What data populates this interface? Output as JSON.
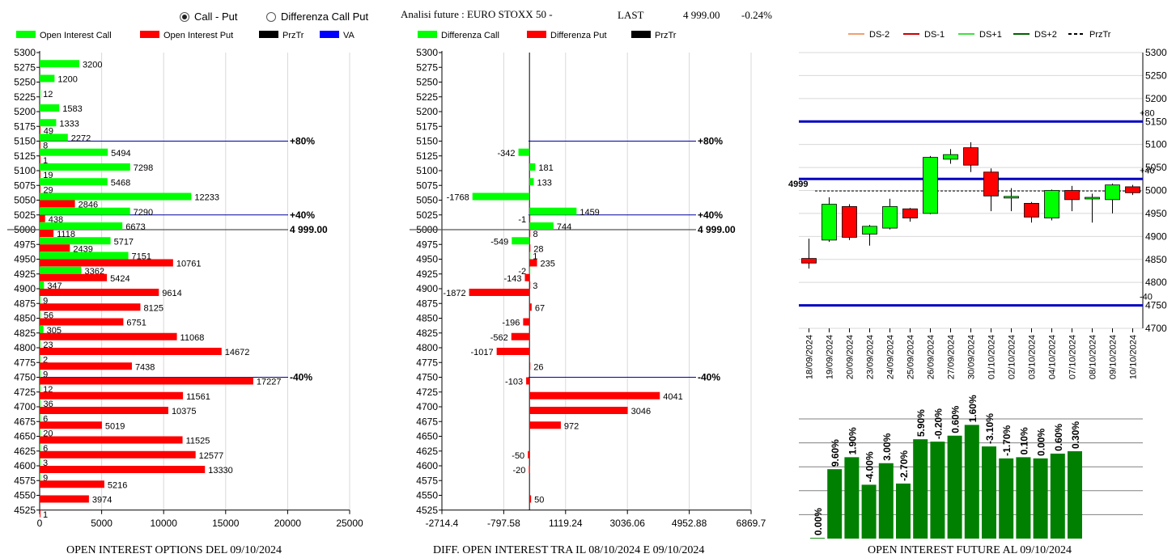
{
  "header": {
    "radio_call_put": "Call - Put",
    "radio_diff": "Differenza Call Put",
    "analysis_title": "Analisi future : EURO STOXX 50 -",
    "last_label": "LAST",
    "last_value": "4 999.00",
    "last_change": "-0.24%"
  },
  "colors": {
    "green": "#00ff00",
    "red": "#ff0000",
    "black": "#000000",
    "blue": "#0000ff",
    "dark_green": "#008000",
    "navy": "#0000c0"
  },
  "captions": {
    "left": "OPEN INTEREST OPTIONS DEL 09/10/2024",
    "middle": "DIFF. OPEN INTEREST TRA IL 08/10/2024 E 09/10/2024",
    "right": "OPEN INTEREST FUTURE AL 09/10/2024"
  },
  "chart_data": [
    {
      "type": "bar",
      "orientation": "horizontal",
      "legend": [
        "Open Interest Call",
        "Open Interest Put",
        "PrzTr",
        "VA"
      ],
      "categories": [
        "5300",
        "5275",
        "5250",
        "5225",
        "5200",
        "5175",
        "5150",
        "5125",
        "5100",
        "5075",
        "5050",
        "5025",
        "5000",
        "4975",
        "4950",
        "4925",
        "4900",
        "4875",
        "4850",
        "4825",
        "4800",
        "4775",
        "4750",
        "4725",
        "4700",
        "4675",
        "4650",
        "4625",
        "4600",
        "4575",
        "4550",
        "4525"
      ],
      "series": [
        {
          "name": "Open Interest Call",
          "color": "#00ff00",
          "values": [
            null,
            3200,
            1200,
            12,
            1583,
            1333,
            2272,
            5494,
            7298,
            5468,
            12233,
            7290,
            6673,
            5717,
            7151,
            3362,
            347,
            9,
            56,
            305,
            23,
            2,
            9,
            12,
            36,
            6,
            20,
            6,
            3,
            9,
            null,
            null
          ]
        },
        {
          "name": "Open Interest Put",
          "color": "#ff0000",
          "values": [
            null,
            null,
            null,
            null,
            null,
            49,
            8,
            1,
            19,
            29,
            2846,
            438,
            1118,
            2439,
            10761,
            5424,
            9614,
            8125,
            6751,
            11068,
            14672,
            7438,
            17227,
            11561,
            10375,
            5019,
            11525,
            12577,
            13330,
            5216,
            3974,
            1
          ]
        }
      ],
      "xlim": [
        0,
        25000
      ],
      "xticks": [
        "0",
        "5000",
        "10000",
        "15000",
        "20000",
        "25000"
      ],
      "reference_lines": [
        {
          "strike": "5150",
          "label": "+80%"
        },
        {
          "strike": "5025",
          "label": "+40%"
        },
        {
          "strike": "5000",
          "label": "4 999.00"
        },
        {
          "strike": "4750",
          "label": "-40%"
        }
      ]
    },
    {
      "type": "bar",
      "orientation": "horizontal",
      "legend": [
        "Differenza Call",
        "Differenza Put",
        "PrzTr"
      ],
      "categories": [
        "5300",
        "5275",
        "5250",
        "5225",
        "5200",
        "5175",
        "5150",
        "5125",
        "5100",
        "5075",
        "5050",
        "5025",
        "5000",
        "4975",
        "4950",
        "4925",
        "4900",
        "4875",
        "4850",
        "4825",
        "4800",
        "4775",
        "4750",
        "4725",
        "4700",
        "4675",
        "4650",
        "4625",
        "4600",
        "4575",
        "4550",
        "4525"
      ],
      "series": [
        {
          "name": "Differenza Call",
          "color": "#00ff00",
          "values": [
            null,
            null,
            null,
            null,
            null,
            null,
            null,
            -342,
            181,
            133,
            -1768,
            1459,
            744,
            -549,
            1,
            -2,
            null,
            null,
            null,
            null,
            null,
            null,
            null,
            null,
            null,
            null,
            null,
            null,
            null,
            null,
            null,
            null
          ]
        },
        {
          "name": "Differenza Put",
          "color": "#ff0000",
          "values": [
            null,
            null,
            null,
            null,
            null,
            null,
            null,
            null,
            null,
            null,
            null,
            -1,
            8,
            28,
            235,
            -143,
            -1872,
            67,
            -196,
            -562,
            -1017,
            26,
            -103,
            4041,
            3046,
            972,
            null,
            -50,
            -20,
            null,
            50,
            null
          ]
        },
        {
          "name": "Differenza Put extra",
          "color": "#ff0000",
          "values": [
            null,
            null,
            null,
            null,
            null,
            null,
            null,
            null,
            null,
            null,
            null,
            null,
            null,
            null,
            null,
            null,
            3,
            null,
            null,
            null,
            null,
            null,
            null,
            null,
            null,
            null,
            null,
            null,
            null,
            null,
            null,
            null
          ]
        }
      ],
      "xlim": [
        -2714.4,
        6869.7
      ],
      "xticks": [
        "-2714.4",
        "-797.58",
        "1119.24",
        "3036.06",
        "4952.88",
        "6869.7"
      ],
      "reference_lines": [
        {
          "strike": "5150",
          "label": "+80%"
        },
        {
          "strike": "5025",
          "label": "+40%"
        },
        {
          "strike": "5000",
          "label": "4 999.00"
        },
        {
          "strike": "4750",
          "label": "-40%"
        }
      ]
    },
    {
      "type": "candlestick",
      "legend": [
        "DS-2",
        "DS-1",
        "DS+1",
        "DS+2",
        "PrzTr"
      ],
      "legend_colors": [
        "#f0a070",
        "#cc0000",
        "#40e040",
        "#006000",
        "#000000"
      ],
      "ylim": [
        4700,
        5300
      ],
      "yticks": [
        "5300",
        "5250",
        "5200",
        "5150",
        "5100",
        "5050",
        "5000",
        "4950",
        "4900",
        "4850",
        "4800",
        "4750",
        "4700"
      ],
      "x": [
        "18/09/2024",
        "19/09/2024",
        "20/09/2024",
        "23/09/2024",
        "24/09/2024",
        "25/09/2024",
        "26/09/2024",
        "27/09/2024",
        "30/09/2024",
        "01/10/2024",
        "02/10/2024",
        "03/10/2024",
        "04/10/2024",
        "07/10/2024",
        "08/10/2024",
        "09/10/2024",
        "10/10/2024"
      ],
      "candles": [
        {
          "open": 4852,
          "close": 4842,
          "high": 4895,
          "low": 4830
        },
        {
          "open": 4892,
          "close": 4970,
          "high": 4985,
          "low": 4888
        },
        {
          "open": 4965,
          "close": 4898,
          "high": 4970,
          "low": 4892
        },
        {
          "open": 4905,
          "close": 4922,
          "high": 4925,
          "low": 4880
        },
        {
          "open": 4918,
          "close": 4965,
          "high": 4982,
          "low": 4915
        },
        {
          "open": 4960,
          "close": 4940,
          "high": 4962,
          "low": 4932
        },
        {
          "open": 4950,
          "close": 5072,
          "high": 5075,
          "low": 4948
        },
        {
          "open": 5068,
          "close": 5078,
          "high": 5090,
          "low": 5058
        },
        {
          "open": 5093,
          "close": 5055,
          "high": 5105,
          "low": 5040
        },
        {
          "open": 5040,
          "close": 4988,
          "high": 5048,
          "low": 4955
        },
        {
          "open": 4987,
          "close": 4987,
          "high": 5005,
          "low": 4955
        },
        {
          "open": 4972,
          "close": 4942,
          "high": 4975,
          "low": 4930
        },
        {
          "open": 4940,
          "close": 5000,
          "high": 5002,
          "low": 4935
        },
        {
          "open": 5000,
          "close": 4980,
          "high": 5010,
          "low": 4955
        },
        {
          "open": 4985,
          "close": 4985,
          "high": 4993,
          "low": 4930
        },
        {
          "open": 4980,
          "close": 5012,
          "high": 5015,
          "low": 4950
        },
        {
          "open": 5008,
          "close": 4995,
          "high": 5012,
          "low": 4990
        }
      ],
      "hlines": [
        {
          "value": 5150,
          "label": "+80"
        },
        {
          "value": 5025,
          "label": "+40"
        },
        {
          "value": 4750,
          "label": "-40"
        }
      ],
      "price_line": {
        "value": 4999,
        "label": "4999"
      }
    },
    {
      "type": "bar",
      "series": [
        {
          "name": "Open Interest Future",
          "color": "#008000",
          "values": [
            0.3,
            29.0,
            34.0,
            22.5,
            31.5,
            23.0,
            41.5,
            40.5,
            43.0,
            47.5,
            38.5,
            33.5,
            34.0,
            33.5,
            35.5,
            36.5
          ]
        }
      ],
      "data_labels": [
        "0.00%",
        "9.60%",
        "1.90%",
        "-4.00%",
        "3.00%",
        "-2.70%",
        "5.90%",
        "-0.20%",
        "0.60%",
        "1.60%",
        "-3.10%",
        "-1.70%",
        "0.10%",
        "0.00%",
        "0.60%",
        "0.30%"
      ],
      "ylim": [
        0,
        50
      ]
    }
  ]
}
